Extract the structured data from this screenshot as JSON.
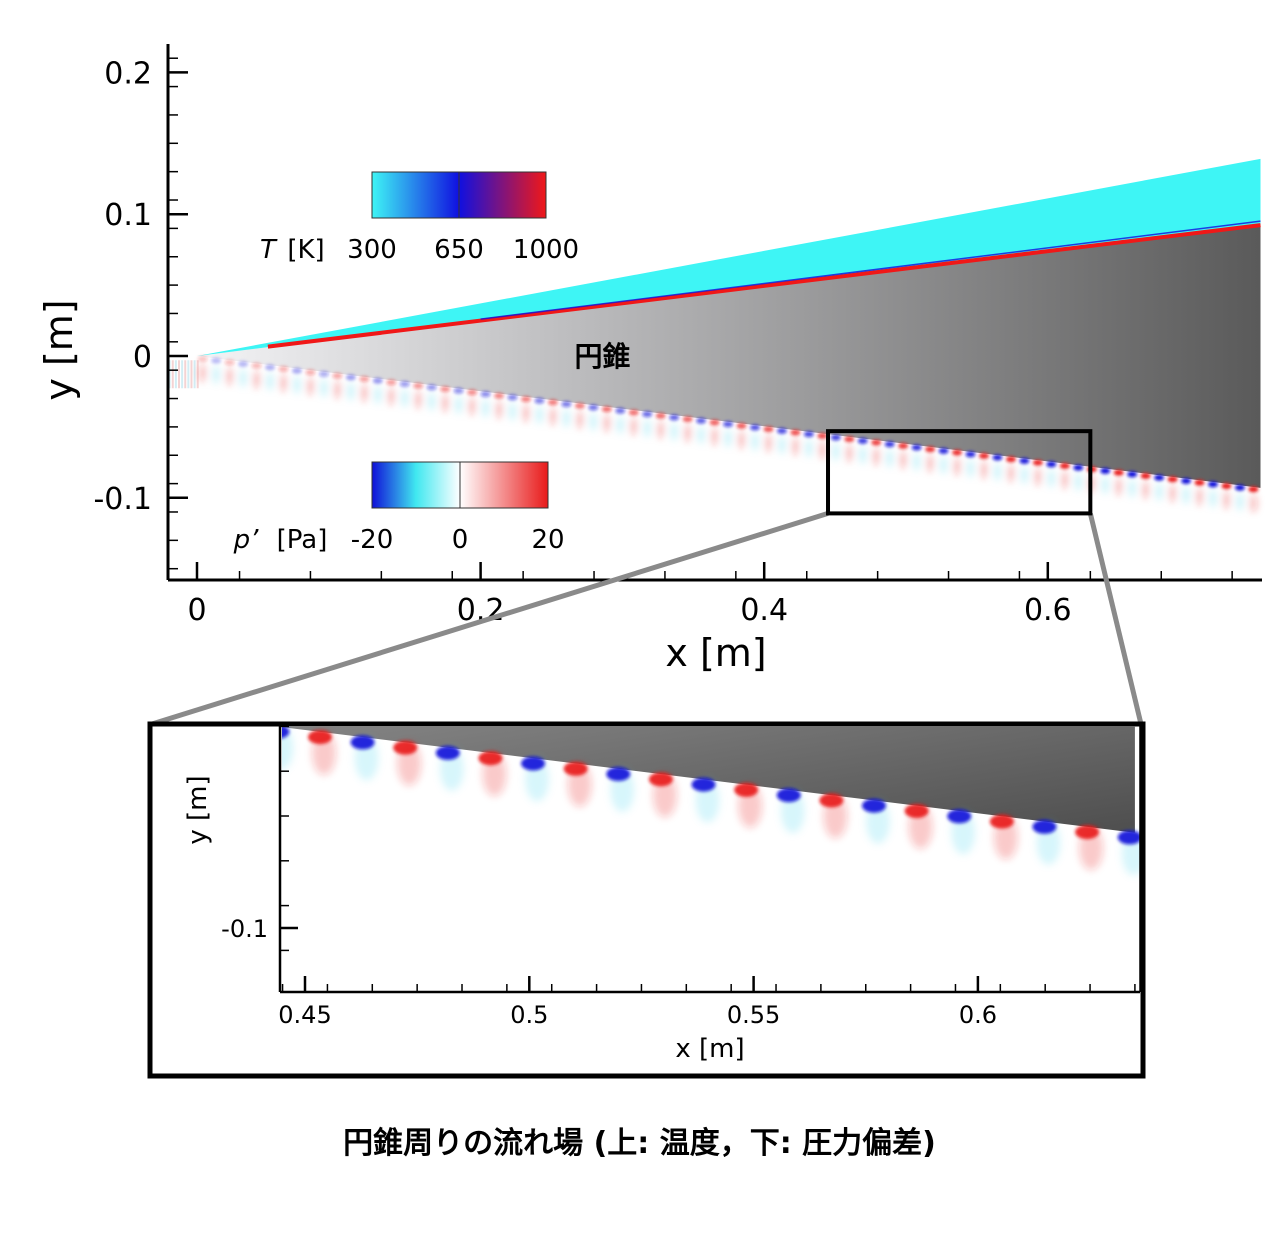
{
  "caption": "円錐周りの流れ場 (上: 温度，下: 圧力偏差)",
  "colors": {
    "cold_cyan": "#3ef5f5",
    "mid_blue": "#1010e0",
    "hot_red": "#f01818",
    "neg_blue": "#1010d8",
    "pos_red": "#e81a1a",
    "cone_light": "#e9e9eb",
    "cone_dark": "#5a5a5a",
    "callout_gray": "#8a8a8a"
  },
  "chart_data": [
    {
      "type": "contour",
      "xlabel": "x [m]",
      "ylabel": "y [m]",
      "xlim": [
        -0.02,
        0.75
      ],
      "ylim": [
        -0.16,
        0.21
      ],
      "x_ticks": [
        0,
        0.2,
        0.4,
        0.6
      ],
      "x_tick_labels": [
        "0",
        "0.2",
        "0.4",
        "0.6"
      ],
      "y_ticks": [
        0.2,
        0.1,
        0,
        -0.1
      ],
      "y_tick_labels": [
        "0.2",
        "0.1",
        "0",
        "-0.1"
      ],
      "body_label": "円錐",
      "cone": {
        "apex": [
          0,
          0
        ],
        "upper_surface_end": [
          0.75,
          0.093
        ],
        "lower_surface_end": [
          0.75,
          -0.093
        ],
        "shock_end": [
          0.75,
          0.139
        ]
      },
      "colorbars": [
        {
          "variable_symbol": "T",
          "variable_unit": "[K]",
          "tick_labels": [
            "300",
            "650",
            "1000"
          ],
          "range": [
            300,
            1000
          ],
          "colormap": [
            "#3ef5f5",
            "#1010e0",
            "#f01818"
          ],
          "location": "upper half"
        },
        {
          "variable_symbol": "p’",
          "variable_unit": "[Pa]",
          "tick_labels": [
            "-20",
            "0",
            "20"
          ],
          "range": [
            -20,
            20
          ],
          "colormap": [
            "#1010d8",
            "#ffffff",
            "#e81a1a"
          ],
          "location": "lower half"
        }
      ],
      "zoom_box": {
        "xlim": [
          0.445,
          0.63
        ],
        "ylim": [
          -0.111,
          -0.053
        ]
      }
    },
    {
      "type": "contour",
      "xlabel": "x [m]",
      "ylabel": "y [m]",
      "xlim": [
        0.443,
        0.635
      ],
      "ylim": [
        -0.128,
        -0.053
      ],
      "x_ticks": [
        0.45,
        0.5,
        0.55,
        0.6
      ],
      "x_tick_labels": [
        "0.45",
        "0.5",
        "0.55",
        "0.6"
      ],
      "y_ticks": [
        -0.1
      ],
      "y_tick_labels": [
        "-0.1"
      ]
    }
  ]
}
